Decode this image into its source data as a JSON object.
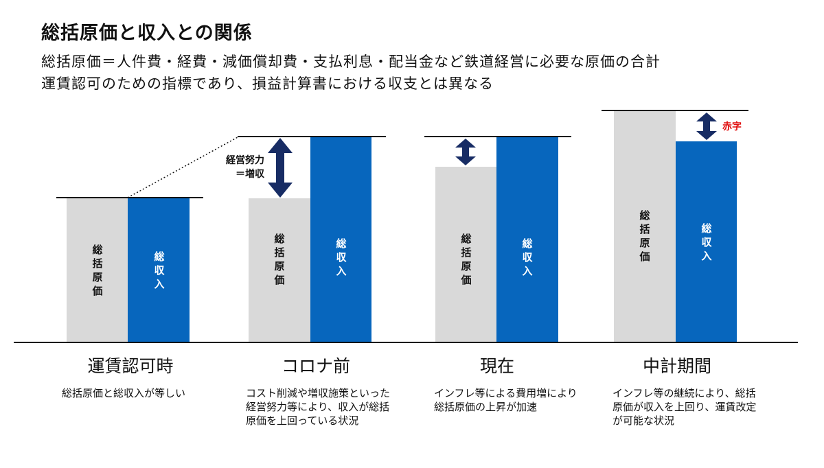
{
  "title": "総括原価と収入との関係",
  "subtitle_line1": "総括原価＝人件費・経費・減価償却費・支払利息・配当金など鉄道経営に必要な原価の合計",
  "subtitle_line2": "運賃認可のための指標であり、損益計算書における収支とは異なる",
  "bar_labels": {
    "cost": "総括原価",
    "revenue": "総収入"
  },
  "annotations": {
    "effort_line1": "経営努力",
    "effort_line2": "＝増収",
    "deficit": "赤字"
  },
  "periods": [
    {
      "name": "運賃認可時",
      "description": "総括原価と総収入が等しい"
    },
    {
      "name": "コロナ前",
      "description": "コスト削減や増収施策といった経営努力等により、収入が総括原価を上回っている状況"
    },
    {
      "name": "現在",
      "description": "インフレ等による費用増により総括原価の上昇が加速"
    },
    {
      "name": "中計期間",
      "description": "インフレ等の継続により、総括原価が収入を上回り、運賃改定が可能な状況"
    }
  ],
  "colors": {
    "cost_bar": "#d9d9d9",
    "revenue_bar": "#0766bd",
    "arrow": "#172c64",
    "deficit_text": "#e00b0b"
  }
}
